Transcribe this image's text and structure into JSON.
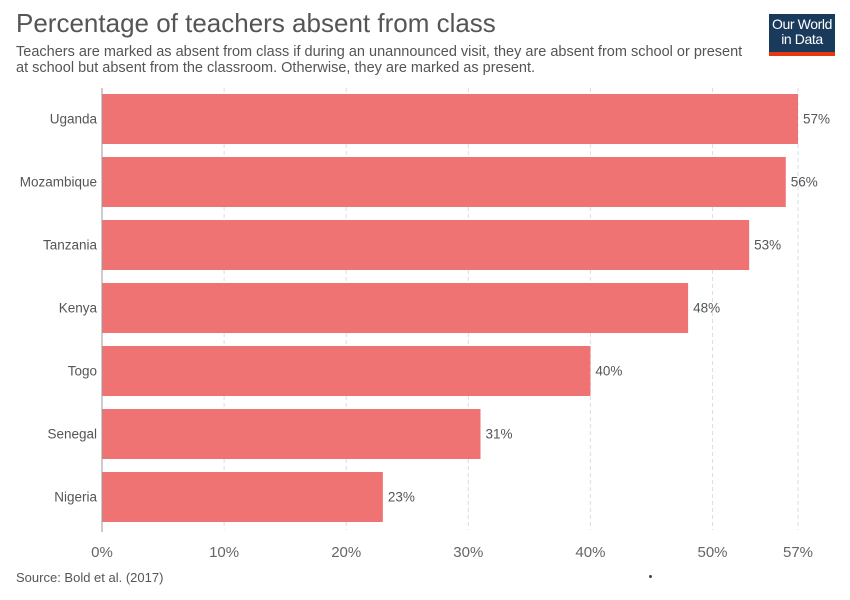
{
  "header": {
    "title": "Percentage of teachers absent from class",
    "subtitle": "Teachers are marked as absent from class if during an unannounced visit, they are absent from school or present at school but absent from the classroom. Otherwise, they are marked as present."
  },
  "logo": {
    "text": "Our World\nin Data",
    "bg_color": "#1a3a5c",
    "accent_color": "#e63912"
  },
  "footer": {
    "source": "Source: Bold et al. (2017)"
  },
  "chart_data": {
    "type": "bar",
    "orientation": "horizontal",
    "categories": [
      "Uganda",
      "Mozambique",
      "Tanzania",
      "Kenya",
      "Togo",
      "Senegal",
      "Nigeria"
    ],
    "values": [
      57,
      56,
      53,
      48,
      40,
      31,
      23
    ],
    "value_labels": [
      "57%",
      "56%",
      "53%",
      "48%",
      "40%",
      "31%",
      "23%"
    ],
    "xlim": [
      0,
      57
    ],
    "x_ticks": [
      0,
      10,
      20,
      30,
      40,
      50,
      57
    ],
    "x_tick_labels": [
      "0%",
      "10%",
      "20%",
      "30%",
      "40%",
      "50%",
      "57%"
    ],
    "grid": true,
    "bar_color": "#f07373"
  }
}
